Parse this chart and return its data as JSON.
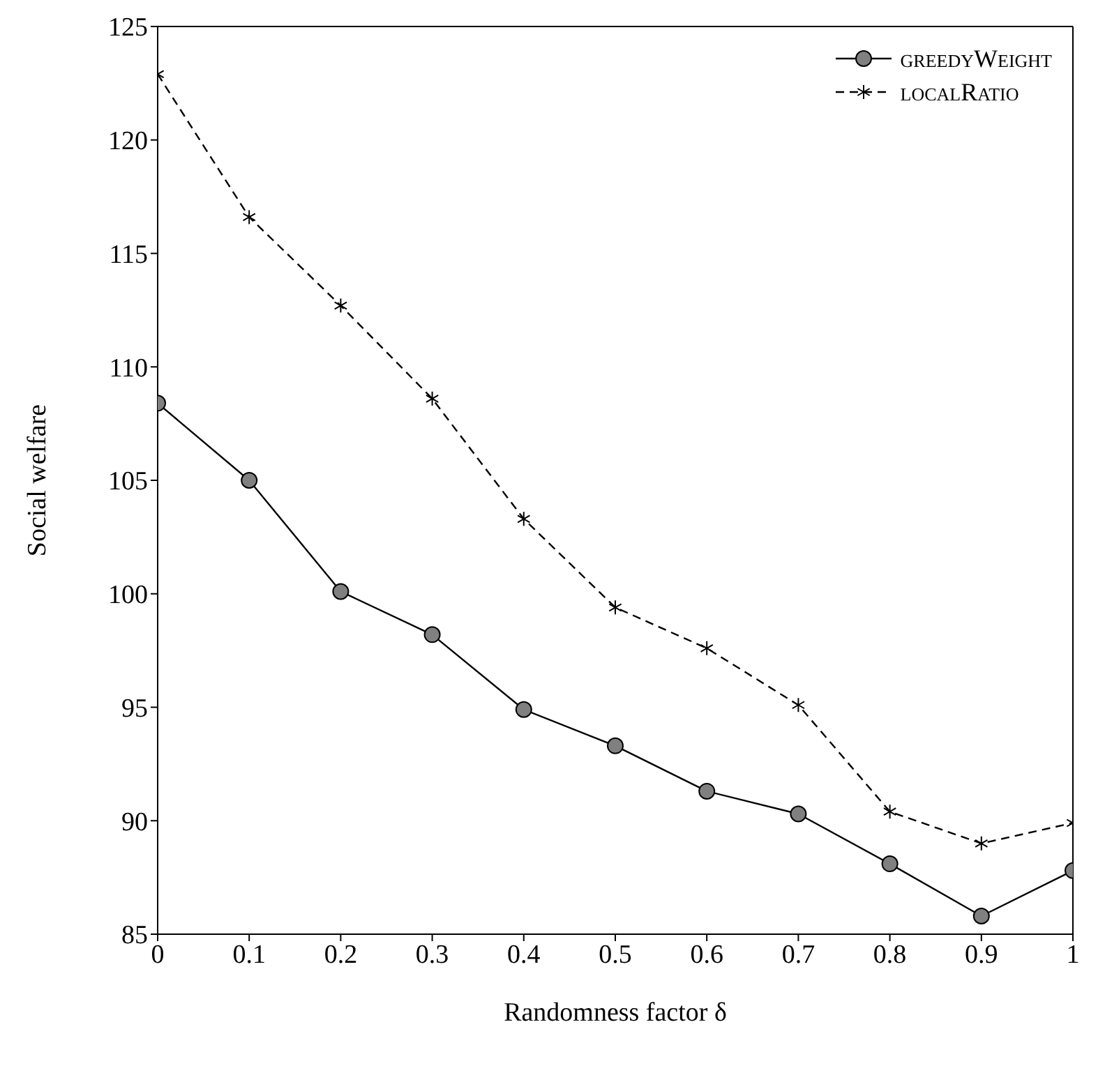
{
  "chart_data": {
    "type": "line",
    "xlabel": "Randomness factor δ",
    "ylabel": "Social welfare",
    "x": [
      0,
      0.1,
      0.2,
      0.3,
      0.4,
      0.5,
      0.6,
      0.7,
      0.8,
      0.9,
      1
    ],
    "series": [
      {
        "name": "greedyWeight",
        "color": "#000000",
        "marker": "circle",
        "line_style": "solid",
        "values": [
          108.4,
          105.0,
          100.1,
          98.2,
          94.9,
          93.3,
          91.3,
          90.3,
          88.1,
          85.8,
          87.8
        ]
      },
      {
        "name": "localRatio",
        "color": "#000000",
        "marker": "cross",
        "line_style": "dashed",
        "values": [
          122.9,
          116.6,
          112.7,
          108.6,
          103.3,
          99.4,
          97.6,
          95.1,
          90.4,
          89.0,
          89.9
        ]
      }
    ],
    "xlim": [
      0,
      1
    ],
    "xticks": [
      0,
      0.1,
      0.2,
      0.3,
      0.4,
      0.5,
      0.6,
      0.7,
      0.8,
      0.9,
      1
    ],
    "ylim": [
      85,
      125
    ],
    "yticks": [
      85,
      90,
      95,
      100,
      105,
      110,
      115,
      120,
      125
    ],
    "grid": false,
    "legend": "top right"
  }
}
